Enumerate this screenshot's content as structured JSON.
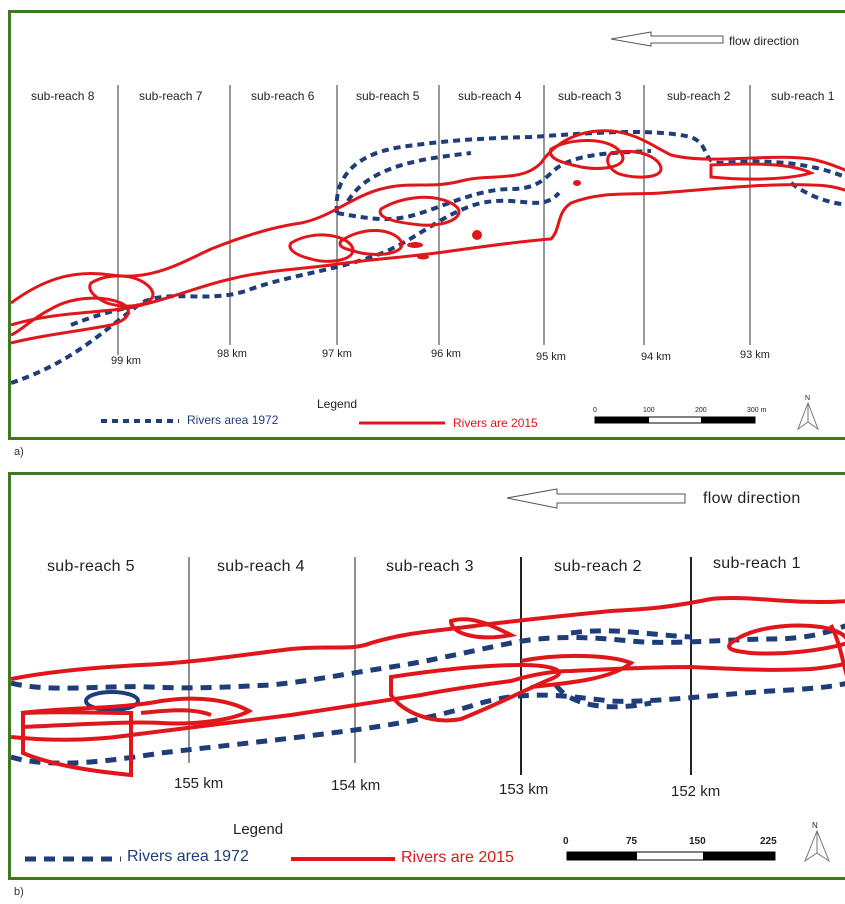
{
  "colors": {
    "frame": "#3f7a1e",
    "river_1972": "#1f3d78",
    "river_2015": "#e0161b"
  },
  "panel_a": {
    "letter": "a)",
    "flow_label": "flow direction",
    "subreaches": [
      "sub-reach 8",
      "sub-reach 7",
      "sub-reach 6",
      "sub-reach 5",
      "sub-reach 4",
      "sub-reach 3",
      "sub-reach 2",
      "sub-reach 1"
    ],
    "km_labels": [
      "99 km",
      "98 km",
      "97 km",
      "96 km",
      "95 km",
      "94 km",
      "93 km"
    ],
    "legend_title": "Legend",
    "legend_1972": "Rivers area 1972",
    "legend_2015": "Rivers are 2015",
    "scale_labels": [
      "0",
      "100",
      "200",
      "300 m"
    ],
    "north": "N"
  },
  "panel_b": {
    "letter": "b)",
    "flow_label": "flow direction",
    "subreaches": [
      "sub-reach 5",
      "sub-reach 4",
      "sub-reach 3",
      "sub-reach 2",
      "sub-reach 1"
    ],
    "km_labels": [
      "155 km",
      "154 km",
      "153 km",
      "152 km"
    ],
    "legend_title": "Legend",
    "legend_1972": "Rivers area 1972",
    "legend_2015": "Rivers are 2015",
    "scale_labels": [
      "0",
      "75",
      "150",
      "225"
    ],
    "north": "N"
  }
}
